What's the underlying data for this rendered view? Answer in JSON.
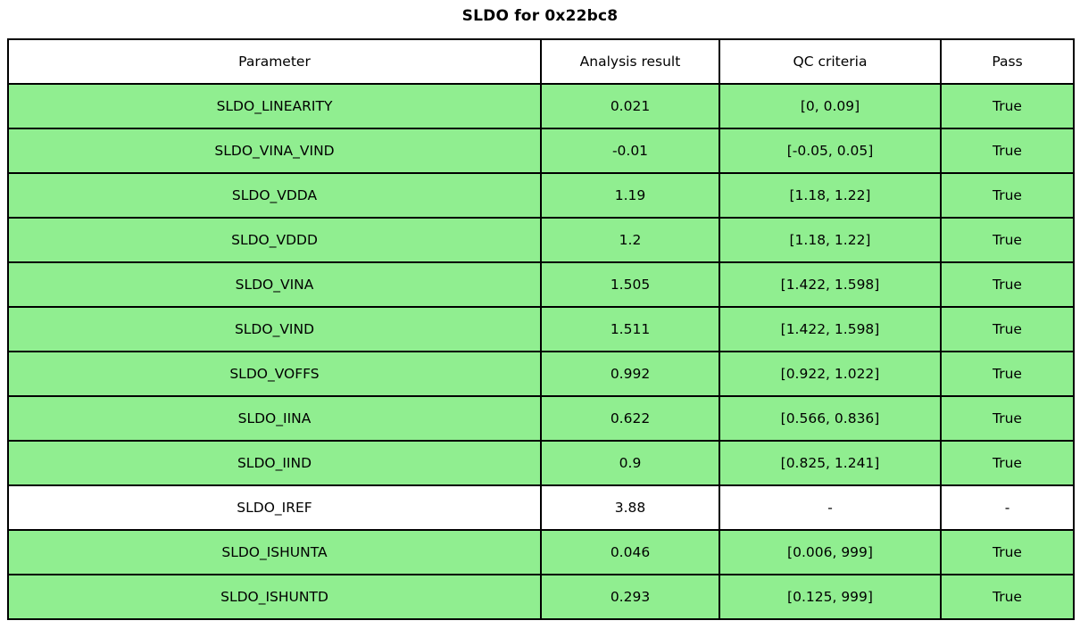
{
  "title": "SLDO for 0x22bc8",
  "colors": {
    "pass_row_green": "#90ee90",
    "neutral_row_white": "#ffffff",
    "border_black": "#000000"
  },
  "chart_data": {
    "type": "table",
    "title": "SLDO for 0x22bc8",
    "columns": [
      "Parameter",
      "Analysis result",
      "QC criteria",
      "Pass"
    ],
    "rows": [
      [
        "SLDO_LINEARITY",
        "0.021",
        "[0, 0.09]",
        "True"
      ],
      [
        "SLDO_VINA_VIND",
        "-0.01",
        "[-0.05, 0.05]",
        "True"
      ],
      [
        "SLDO_VDDA",
        "1.19",
        "[1.18, 1.22]",
        "True"
      ],
      [
        "SLDO_VDDD",
        "1.2",
        "[1.18, 1.22]",
        "True"
      ],
      [
        "SLDO_VINA",
        "1.505",
        "[1.422, 1.598]",
        "True"
      ],
      [
        "SLDO_VIND",
        "1.511",
        "[1.422, 1.598]",
        "True"
      ],
      [
        "SLDO_VOFFS",
        "0.992",
        "[0.922, 1.022]",
        "True"
      ],
      [
        "SLDO_IINA",
        "0.622",
        "[0.566, 0.836]",
        "True"
      ],
      [
        "SLDO_IIND",
        "0.9",
        "[0.825, 1.241]",
        "True"
      ],
      [
        "SLDO_IREF",
        "3.88",
        "-",
        "-"
      ],
      [
        "SLDO_ISHUNTA",
        "0.046",
        "[0.006, 999]",
        "True"
      ],
      [
        "SLDO_ISHUNTD",
        "0.293",
        "[0.125, 999]",
        "True"
      ]
    ],
    "row_colors": [
      "#90ee90",
      "#90ee90",
      "#90ee90",
      "#90ee90",
      "#90ee90",
      "#90ee90",
      "#90ee90",
      "#90ee90",
      "#90ee90",
      "#ffffff",
      "#90ee90",
      "#90ee90"
    ],
    "header_background": "#ffffff",
    "grid": true,
    "legend_position": "none"
  }
}
